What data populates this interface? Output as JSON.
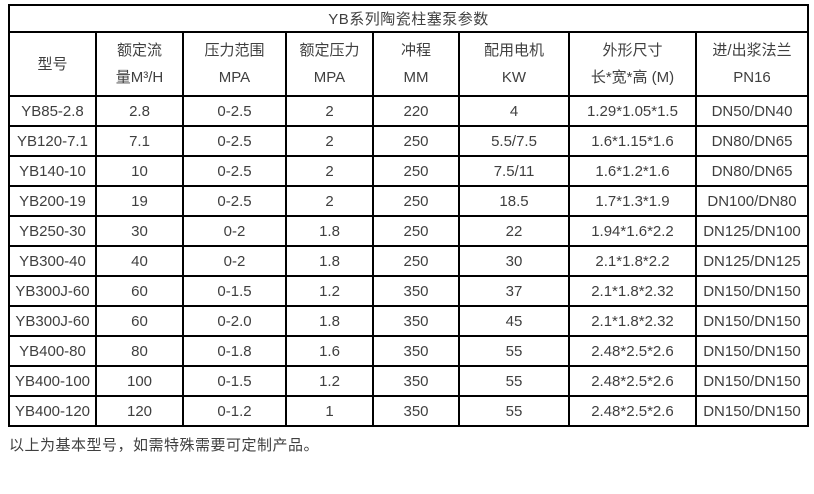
{
  "table": {
    "title": "YB系列陶瓷柱塞泵参数",
    "columns": [
      {
        "lines": [
          "型号"
        ]
      },
      {
        "lines": [
          "额定流",
          "量M³/H"
        ]
      },
      {
        "lines": [
          "压力范围",
          "MPA"
        ]
      },
      {
        "lines": [
          "额定压力",
          "MPA"
        ]
      },
      {
        "lines": [
          "冲程",
          "MM"
        ]
      },
      {
        "lines": [
          "配用电机",
          "KW"
        ]
      },
      {
        "lines": [
          "外形尺寸",
          "长*宽*高 (M)"
        ]
      },
      {
        "lines": [
          "进/出浆法兰",
          "PN16"
        ]
      }
    ],
    "rows": [
      [
        "YB85-2.8",
        "2.8",
        "0-2.5",
        "2",
        "220",
        "4",
        "1.29*1.05*1.5",
        "DN50/DN40"
      ],
      [
        "YB120-7.1",
        "7.1",
        "0-2.5",
        "2",
        "250",
        "5.5/7.5",
        "1.6*1.15*1.6",
        "DN80/DN65"
      ],
      [
        "YB140-10",
        "10",
        "0-2.5",
        "2",
        "250",
        "7.5/11",
        "1.6*1.2*1.6",
        "DN80/DN65"
      ],
      [
        "YB200-19",
        "19",
        "0-2.5",
        "2",
        "250",
        "18.5",
        "1.7*1.3*1.9",
        "DN100/DN80"
      ],
      [
        "YB250-30",
        "30",
        "0-2",
        "1.8",
        "250",
        "22",
        "1.94*1.6*2.2",
        "DN125/DN100"
      ],
      [
        "YB300-40",
        "40",
        "0-2",
        "1.8",
        "250",
        "30",
        "2.1*1.8*2.2",
        "DN125/DN125"
      ],
      [
        "YB300J-60",
        "60",
        "0-1.5",
        "1.2",
        "350",
        "37",
        "2.1*1.8*2.32",
        "DN150/DN150"
      ],
      [
        "YB300J-60",
        "60",
        "0-2.0",
        "1.8",
        "350",
        "45",
        "2.1*1.8*2.32",
        "DN150/DN150"
      ],
      [
        "YB400-80",
        "80",
        "0-1.8",
        "1.6",
        "350",
        "55",
        "2.48*2.5*2.6",
        "DN150/DN150"
      ],
      [
        "YB400-100",
        "100",
        "0-1.5",
        "1.2",
        "350",
        "55",
        "2.48*2.5*2.6",
        "DN150/DN150"
      ],
      [
        "YB400-120",
        "120",
        "0-1.2",
        "1",
        "350",
        "55",
        "2.48*2.5*2.6",
        "DN150/DN150"
      ]
    ]
  },
  "footer": {
    "note": "以上为基本型号，如需特殊需要可定制产品。"
  },
  "colors": {
    "border": "#000000",
    "text": "#3f3f3f",
    "background": "#ffffff"
  }
}
